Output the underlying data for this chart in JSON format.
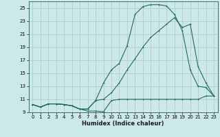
{
  "xlabel": "Humidex (Indice chaleur)",
  "bg_color": "#cde8e8",
  "grid_color": "#b0cccc",
  "line_color": "#1a6b5a",
  "xlim": [
    -0.5,
    23.5
  ],
  "ylim": [
    9,
    26
  ],
  "xticks": [
    0,
    1,
    2,
    3,
    4,
    5,
    6,
    7,
    8,
    9,
    10,
    11,
    12,
    13,
    14,
    15,
    16,
    17,
    18,
    19,
    20,
    21,
    22,
    23
  ],
  "yticks": [
    9,
    11,
    13,
    15,
    17,
    19,
    21,
    23,
    25
  ],
  "series1_x": [
    0,
    1,
    2,
    3,
    4,
    5,
    6,
    7,
    8,
    9,
    10,
    11,
    12,
    13,
    14,
    15,
    16,
    17,
    18,
    19,
    20,
    21,
    22,
    23
  ],
  "series1_y": [
    10.2,
    9.8,
    10.3,
    10.3,
    10.2,
    10.0,
    9.5,
    9.2,
    9.2,
    9.1,
    10.8,
    11.0,
    11.0,
    11.0,
    11.0,
    11.0,
    11.0,
    11.0,
    11.0,
    11.0,
    11.0,
    11.0,
    11.5,
    11.5
  ],
  "series2_x": [
    0,
    1,
    2,
    3,
    4,
    5,
    6,
    7,
    8,
    9,
    10,
    11,
    12,
    13,
    14,
    15,
    16,
    17,
    18,
    19,
    20,
    21,
    22,
    23
  ],
  "series2_y": [
    10.2,
    9.8,
    10.3,
    10.3,
    10.2,
    10.0,
    9.5,
    9.5,
    10.8,
    13.5,
    15.5,
    16.5,
    19.2,
    24.0,
    25.2,
    25.5,
    25.5,
    25.3,
    24.0,
    21.5,
    15.5,
    13.0,
    12.8,
    11.5
  ],
  "series3_x": [
    0,
    1,
    2,
    3,
    4,
    5,
    6,
    7,
    8,
    9,
    10,
    11,
    12,
    13,
    14,
    15,
    16,
    17,
    18,
    19,
    20,
    21,
    22,
    23
  ],
  "series3_y": [
    10.2,
    9.8,
    10.3,
    10.3,
    10.2,
    10.0,
    9.5,
    9.5,
    10.8,
    11.0,
    12.0,
    13.5,
    15.5,
    17.2,
    19.0,
    20.5,
    21.5,
    22.5,
    23.5,
    22.0,
    22.5,
    16.0,
    13.5,
    11.5
  ],
  "tick_fontsize": 5,
  "xlabel_fontsize": 6,
  "linewidth": 0.8,
  "markersize": 2.0,
  "markeredgewidth": 0.7
}
